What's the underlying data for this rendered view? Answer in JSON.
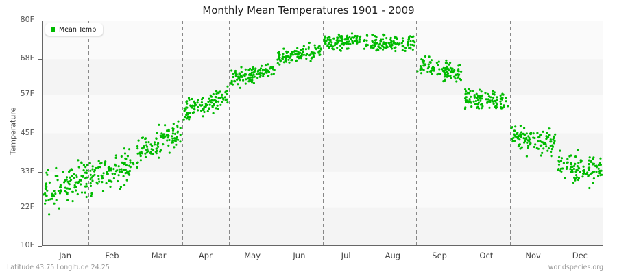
{
  "chart_data": {
    "type": "scatter",
    "title": "Monthly Mean Temperatures 1901 - 2009",
    "xlabel": "",
    "ylabel": "Temperature",
    "ylim": [
      10,
      80
    ],
    "yticks": [
      "80F",
      "68F",
      "57F",
      "45F",
      "33F",
      "22F",
      "10F"
    ],
    "ytick_values": [
      80,
      68,
      57,
      45,
      33,
      22,
      10
    ],
    "categories": [
      "Jan",
      "Feb",
      "Mar",
      "Apr",
      "May",
      "Jun",
      "Jul",
      "Aug",
      "Sep",
      "Oct",
      "Nov",
      "Dec"
    ],
    "legend": [
      "Mean Temp"
    ],
    "legend_position": "top-left",
    "grid": "alternating horizontal bands; dashed vertical month separators",
    "series": [
      {
        "name": "Mean Temp",
        "color": "#00bb00",
        "points_per_month": 109,
        "monthly_summary": [
          {
            "month": "Jan",
            "start": 27,
            "end": 31,
            "spread": 5,
            "min": 18,
            "max": 40
          },
          {
            "month": "Feb",
            "start": 31,
            "end": 35,
            "spread": 4.5,
            "min": 23,
            "max": 44
          },
          {
            "month": "Mar",
            "start": 39,
            "end": 45,
            "spread": 3.5,
            "min": 33,
            "max": 51
          },
          {
            "month": "Apr",
            "start": 52,
            "end": 56,
            "spread": 2.8,
            "min": 45,
            "max": 60
          },
          {
            "month": "May",
            "start": 62,
            "end": 65,
            "spread": 2.4,
            "min": 56,
            "max": 69
          },
          {
            "month": "Jun",
            "start": 68,
            "end": 71,
            "spread": 2.1,
            "min": 64,
            "max": 75
          },
          {
            "month": "Jul",
            "start": 73,
            "end": 74,
            "spread": 1.9,
            "min": 68,
            "max": 79
          },
          {
            "month": "Aug",
            "start": 73,
            "end": 73,
            "spread": 2.3,
            "min": 66,
            "max": 79
          },
          {
            "month": "Sep",
            "start": 66,
            "end": 64,
            "spread": 2.4,
            "min": 59,
            "max": 70
          },
          {
            "month": "Oct",
            "start": 56,
            "end": 55,
            "spread": 2.4,
            "min": 50,
            "max": 60
          },
          {
            "month": "Nov",
            "start": 44,
            "end": 42,
            "spread": 3.2,
            "min": 36,
            "max": 54
          },
          {
            "month": "Dec",
            "start": 35,
            "end": 33,
            "spread": 3.6,
            "min": 23,
            "max": 41
          }
        ]
      }
    ]
  },
  "header": {
    "title": "Monthly Mean Temperatures 1901 - 2009"
  },
  "axis": {
    "ylabel": "Temperature"
  },
  "legend": {
    "label": "Mean Temp"
  },
  "footer": {
    "location": "Latitude 43.75 Longitude 24.25",
    "source": "worldspecies.org"
  },
  "colors": {
    "point": "#00bb00",
    "band_light": "#fafafa",
    "band_dark": "#f4f4f4",
    "divider": "#888888",
    "axis": "#666666"
  }
}
